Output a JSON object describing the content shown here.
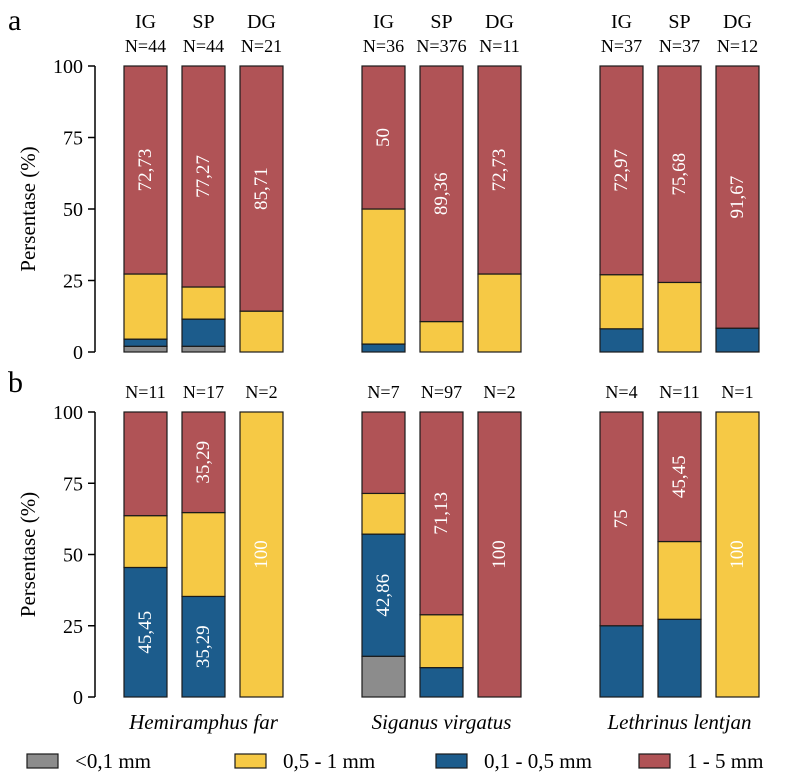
{
  "colors": {
    "lt0_1": "#8c8c8c",
    "mm0_5_1": "#f6c945",
    "mm0_1_0_5": "#1c5c8c",
    "mm1_5": "#b05356"
  },
  "legend": [
    {
      "key": "lt0_1",
      "label": "<0,1 mm"
    },
    {
      "key": "mm0_5_1",
      "label": "0,5 - 1 mm"
    },
    {
      "key": "mm0_1_0_5",
      "label": "0,1 - 0,5 mm"
    },
    {
      "key": "mm1_5",
      "label": "1 - 5 mm"
    }
  ],
  "species": [
    "Hemiramphus far",
    "Siganus virgatus",
    "Lethrinus lentjan"
  ],
  "chart_data": [
    {
      "type": "bar",
      "stacked": true,
      "panel_label": "a",
      "ylabel": "Persentase (%)",
      "ylim": [
        0,
        100
      ],
      "yticks": [
        0,
        25,
        50,
        75,
        100
      ],
      "stack_order": [
        "lt0_1",
        "mm0_1_0_5",
        "mm0_5_1",
        "mm1_5"
      ],
      "groups": [
        {
          "species": "Hemiramphus far",
          "bars": [
            {
              "top_label": "IG",
              "n_label": "N=44",
              "values": {
                "lt0_1": 2,
                "mm0_1_0_5": 2.5,
                "mm0_5_1": 22.77,
                "mm1_5": 72.73
              },
              "data_label": "72,73"
            },
            {
              "top_label": "SP",
              "n_label": "N=44",
              "values": {
                "lt0_1": 2,
                "mm0_1_0_5": 9.5,
                "mm0_5_1": 11.23,
                "mm1_5": 77.27
              },
              "data_label": "77,27"
            },
            {
              "top_label": "DG",
              "n_label": "N=21",
              "values": {
                "lt0_1": 0,
                "mm0_1_0_5": 0,
                "mm0_5_1": 14.29,
                "mm1_5": 85.71
              },
              "data_label": "85,71"
            }
          ]
        },
        {
          "species": "Siganus virgatus",
          "bars": [
            {
              "top_label": "IG",
              "n_label": "N=36",
              "values": {
                "lt0_1": 0,
                "mm0_1_0_5": 2.78,
                "mm0_5_1": 47.22,
                "mm1_5": 50
              },
              "data_label": "50"
            },
            {
              "top_label": "SP",
              "n_label": "N=376",
              "values": {
                "lt0_1": 0,
                "mm0_1_0_5": 0,
                "mm0_5_1": 10.64,
                "mm1_5": 89.36
              },
              "data_label": "89,36"
            },
            {
              "top_label": "DG",
              "n_label": "N=11",
              "values": {
                "lt0_1": 0,
                "mm0_1_0_5": 0,
                "mm0_5_1": 27.27,
                "mm1_5": 72.73
              },
              "data_label": "72,73"
            }
          ]
        },
        {
          "species": "Lethrinus lentjan",
          "bars": [
            {
              "top_label": "IG",
              "n_label": "N=37",
              "values": {
                "lt0_1": 0,
                "mm0_1_0_5": 8.11,
                "mm0_5_1": 18.92,
                "mm1_5": 72.97
              },
              "data_label": "72,97"
            },
            {
              "top_label": "SP",
              "n_label": "N=37",
              "values": {
                "lt0_1": 0,
                "mm0_1_0_5": 0,
                "mm0_5_1": 24.32,
                "mm1_5": 75.68
              },
              "data_label": "75,68"
            },
            {
              "top_label": "DG",
              "n_label": "N=12",
              "values": {
                "lt0_1": 0,
                "mm0_1_0_5": 8.33,
                "mm0_5_1": 0,
                "mm1_5": 91.67
              },
              "data_label": "91,67"
            }
          ]
        }
      ]
    },
    {
      "type": "bar",
      "stacked": true,
      "panel_label": "b",
      "ylabel": "Persentase (%)",
      "ylim": [
        0,
        100
      ],
      "yticks": [
        0,
        25,
        50,
        75,
        100
      ],
      "stack_order": [
        "lt0_1",
        "mm0_1_0_5",
        "mm0_5_1",
        "mm1_5"
      ],
      "groups": [
        {
          "species": "Hemiramphus far",
          "bars": [
            {
              "top_label": "",
              "n_label": "N=11",
              "values": {
                "lt0_1": 0,
                "mm0_1_0_5": 45.45,
                "mm0_5_1": 18.18,
                "mm1_5": 36.37
              },
              "data_label": "45,45",
              "data_label_segment": "mm0_1_0_5"
            },
            {
              "top_label": "",
              "n_label": "N=17",
              "values": {
                "lt0_1": 0,
                "mm0_1_0_5": 35.29,
                "mm0_5_1": 29.42,
                "mm1_5": 35.29
              },
              "data_label": "35,29",
              "data_label_segment": "mm0_1_0_5",
              "data_label_2": "35,29",
              "data_label_2_segment": "mm1_5"
            },
            {
              "top_label": "",
              "n_label": "N=2",
              "values": {
                "lt0_1": 0,
                "mm0_1_0_5": 0,
                "mm0_5_1": 100,
                "mm1_5": 0
              },
              "data_label": "100",
              "data_label_segment": "mm0_5_1"
            }
          ]
        },
        {
          "species": "Siganus virgatus",
          "bars": [
            {
              "top_label": "",
              "n_label": "N=7",
              "values": {
                "lt0_1": 14.29,
                "mm0_1_0_5": 42.86,
                "mm0_5_1": 14.28,
                "mm1_5": 28.57
              },
              "data_label": "42,86",
              "data_label_segment": "mm0_1_0_5"
            },
            {
              "top_label": "",
              "n_label": "N=97",
              "values": {
                "lt0_1": 0,
                "mm0_1_0_5": 10.31,
                "mm0_5_1": 18.56,
                "mm1_5": 71.13
              },
              "data_label": "71,13",
              "data_label_segment": "mm1_5"
            },
            {
              "top_label": "",
              "n_label": "N=2",
              "values": {
                "lt0_1": 0,
                "mm0_1_0_5": 0,
                "mm0_5_1": 0,
                "mm1_5": 100
              },
              "data_label": "100",
              "data_label_segment": "mm1_5"
            }
          ]
        },
        {
          "species": "Lethrinus lentjan",
          "bars": [
            {
              "top_label": "",
              "n_label": "N=4",
              "values": {
                "lt0_1": 0,
                "mm0_1_0_5": 25,
                "mm0_5_1": 0,
                "mm1_5": 75
              },
              "data_label": "75",
              "data_label_segment": "mm1_5"
            },
            {
              "top_label": "",
              "n_label": "N=11",
              "values": {
                "lt0_1": 0,
                "mm0_1_0_5": 27.27,
                "mm0_5_1": 27.28,
                "mm1_5": 45.45
              },
              "data_label": "45,45",
              "data_label_segment": "mm1_5"
            },
            {
              "top_label": "",
              "n_label": "N=1",
              "values": {
                "lt0_1": 0,
                "mm0_1_0_5": 0,
                "mm0_5_1": 100,
                "mm1_5": 0
              },
              "data_label": "100",
              "data_label_segment": "mm0_5_1"
            }
          ]
        }
      ]
    }
  ]
}
